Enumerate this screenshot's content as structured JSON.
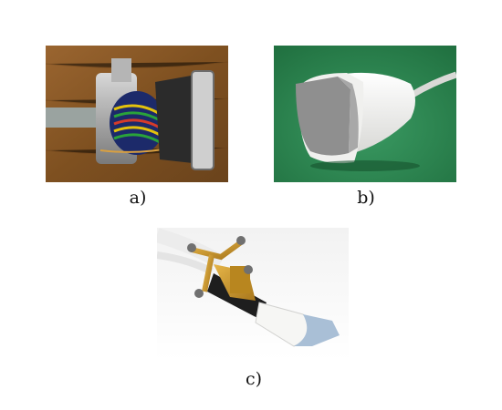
{
  "figure": {
    "panels": [
      {
        "id": "a",
        "caption": "a)"
      },
      {
        "id": "b",
        "caption": "b)"
      },
      {
        "id": "c",
        "caption": "c)"
      }
    ]
  },
  "colors": {
    "page_background": "#ffffff",
    "wood_background": "#8a5a2a",
    "green_background": "#2f8a52",
    "probe_white": "#f2f2f0",
    "probe_grey": "#8f8f8f",
    "tracker_gold": "#c9962e",
    "marker_grey": "#707070",
    "probe_lightblue": "#a9bfd6"
  },
  "icons": [
    "opened-probe-illustration",
    "linear-probe-illustration",
    "tracked-probe-illustration"
  ]
}
